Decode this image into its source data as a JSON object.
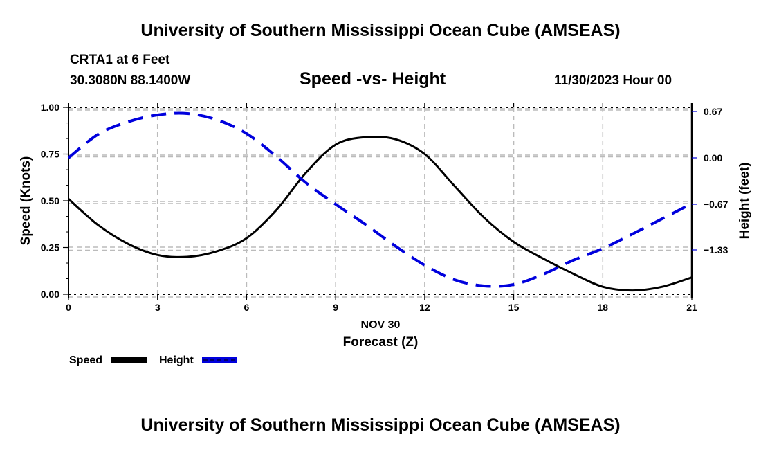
{
  "header": {
    "main_title": "University of Southern Mississippi Ocean Cube (AMSEAS)",
    "station": "CRTA1 at 6 Feet",
    "coords": "30.3080N  88.1400W",
    "subtitle": "Speed -vs- Height",
    "datetime": "11/30/2023 Hour 00"
  },
  "footer": {
    "title": "University of Southern Mississippi Ocean Cube (AMSEAS)"
  },
  "colors": {
    "speed": "#000000",
    "height": "#0000dd",
    "grid": "#bbbbbb"
  },
  "chart_data": {
    "type": "line",
    "title": "Speed -vs- Height",
    "xlabel": "Forecast (Z)",
    "xlabel_date": "NOV 30",
    "ylabel": "Speed (Knots)",
    "y2label": "Height (feet)",
    "xlim": [
      0,
      21
    ],
    "ylim": [
      0,
      1
    ],
    "y2lim": [
      -1.97,
      0.73
    ],
    "xticks": [
      "0",
      "3",
      "6",
      "9",
      "12",
      "15",
      "18",
      "21"
    ],
    "yticks": [
      "0.00",
      "0.25",
      "0.50",
      "0.75",
      "1.00"
    ],
    "y2ticks": [
      "0.67",
      "0.00",
      "−0.67",
      "−1.33"
    ],
    "y2tick_values": [
      0.67,
      0.0,
      -0.67,
      -1.33
    ],
    "grid": true,
    "legend": "bottom-left",
    "x": [
      0,
      1,
      2,
      3,
      4,
      5,
      6,
      7,
      8,
      9,
      10,
      11,
      12,
      13,
      14,
      15,
      16,
      17,
      18,
      19,
      20,
      21
    ],
    "series": [
      {
        "name": "Speed",
        "axis": "left",
        "style": "solid",
        "values": [
          0.51,
          0.37,
          0.27,
          0.21,
          0.2,
          0.23,
          0.3,
          0.45,
          0.65,
          0.8,
          0.84,
          0.83,
          0.75,
          0.58,
          0.41,
          0.28,
          0.19,
          0.11,
          0.04,
          0.02,
          0.04,
          0.09
        ]
      },
      {
        "name": "Height",
        "axis": "right",
        "style": "dashed",
        "values": [
          0.0,
          0.34,
          0.52,
          0.62,
          0.64,
          0.55,
          0.35,
          0.02,
          -0.36,
          -0.67,
          -0.96,
          -1.27,
          -1.55,
          -1.76,
          -1.85,
          -1.83,
          -1.68,
          -1.48,
          -1.31,
          -1.1,
          -0.88,
          -0.66
        ]
      }
    ]
  }
}
